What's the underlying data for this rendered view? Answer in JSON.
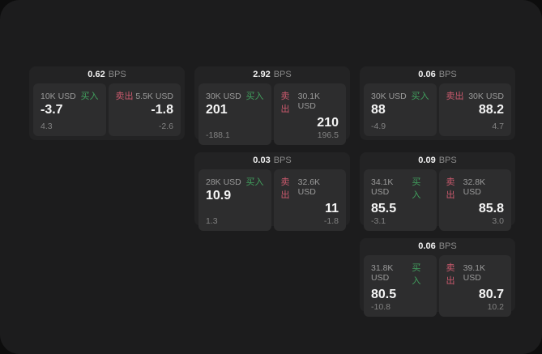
{
  "page": {
    "bps_suffix": "BPS",
    "buy_label": "买入",
    "sell_label": "卖出"
  },
  "colors": {
    "buy_green": "#41a05e",
    "sell_red": "#cc5a6e",
    "panel_bg": "#1c1c1d",
    "card_bg": "#232324",
    "cell_bg": "#2d2d2e"
  },
  "cards": [
    {
      "bps": "0.62",
      "buy_amount": "10K USD",
      "buy_value": "-3.7",
      "buy_delta": "4.3",
      "sell_amount": "5.5K USD",
      "sell_value": "-1.8",
      "sell_delta": "-2.6"
    },
    {
      "bps": "2.92",
      "buy_amount": "30K USD",
      "buy_value": "201",
      "buy_delta": "-188.1",
      "sell_amount": "30.1K USD",
      "sell_value": "210",
      "sell_delta": "196.5"
    },
    {
      "bps": "0.06",
      "buy_amount": "30K USD",
      "buy_value": "88",
      "buy_delta": "-4.9",
      "sell_amount": "30K USD",
      "sell_value": "88.2",
      "sell_delta": "4.7"
    },
    {
      "bps": "0.03",
      "buy_amount": "28K USD",
      "buy_value": "10.9",
      "buy_delta": "1.3",
      "sell_amount": "32.6K USD",
      "sell_value": "11",
      "sell_delta": "-1.8"
    },
    {
      "bps": "0.09",
      "buy_amount": "34.1K USD",
      "buy_value": "85.5",
      "buy_delta": "-3.1",
      "sell_amount": "32.8K USD",
      "sell_value": "85.8",
      "sell_delta": "3.0"
    },
    {
      "bps": "0.06",
      "buy_amount": "31.8K USD",
      "buy_value": "80.5",
      "buy_delta": "-10.8",
      "sell_amount": "39.1K USD",
      "sell_value": "80.7",
      "sell_delta": "10.2"
    }
  ]
}
